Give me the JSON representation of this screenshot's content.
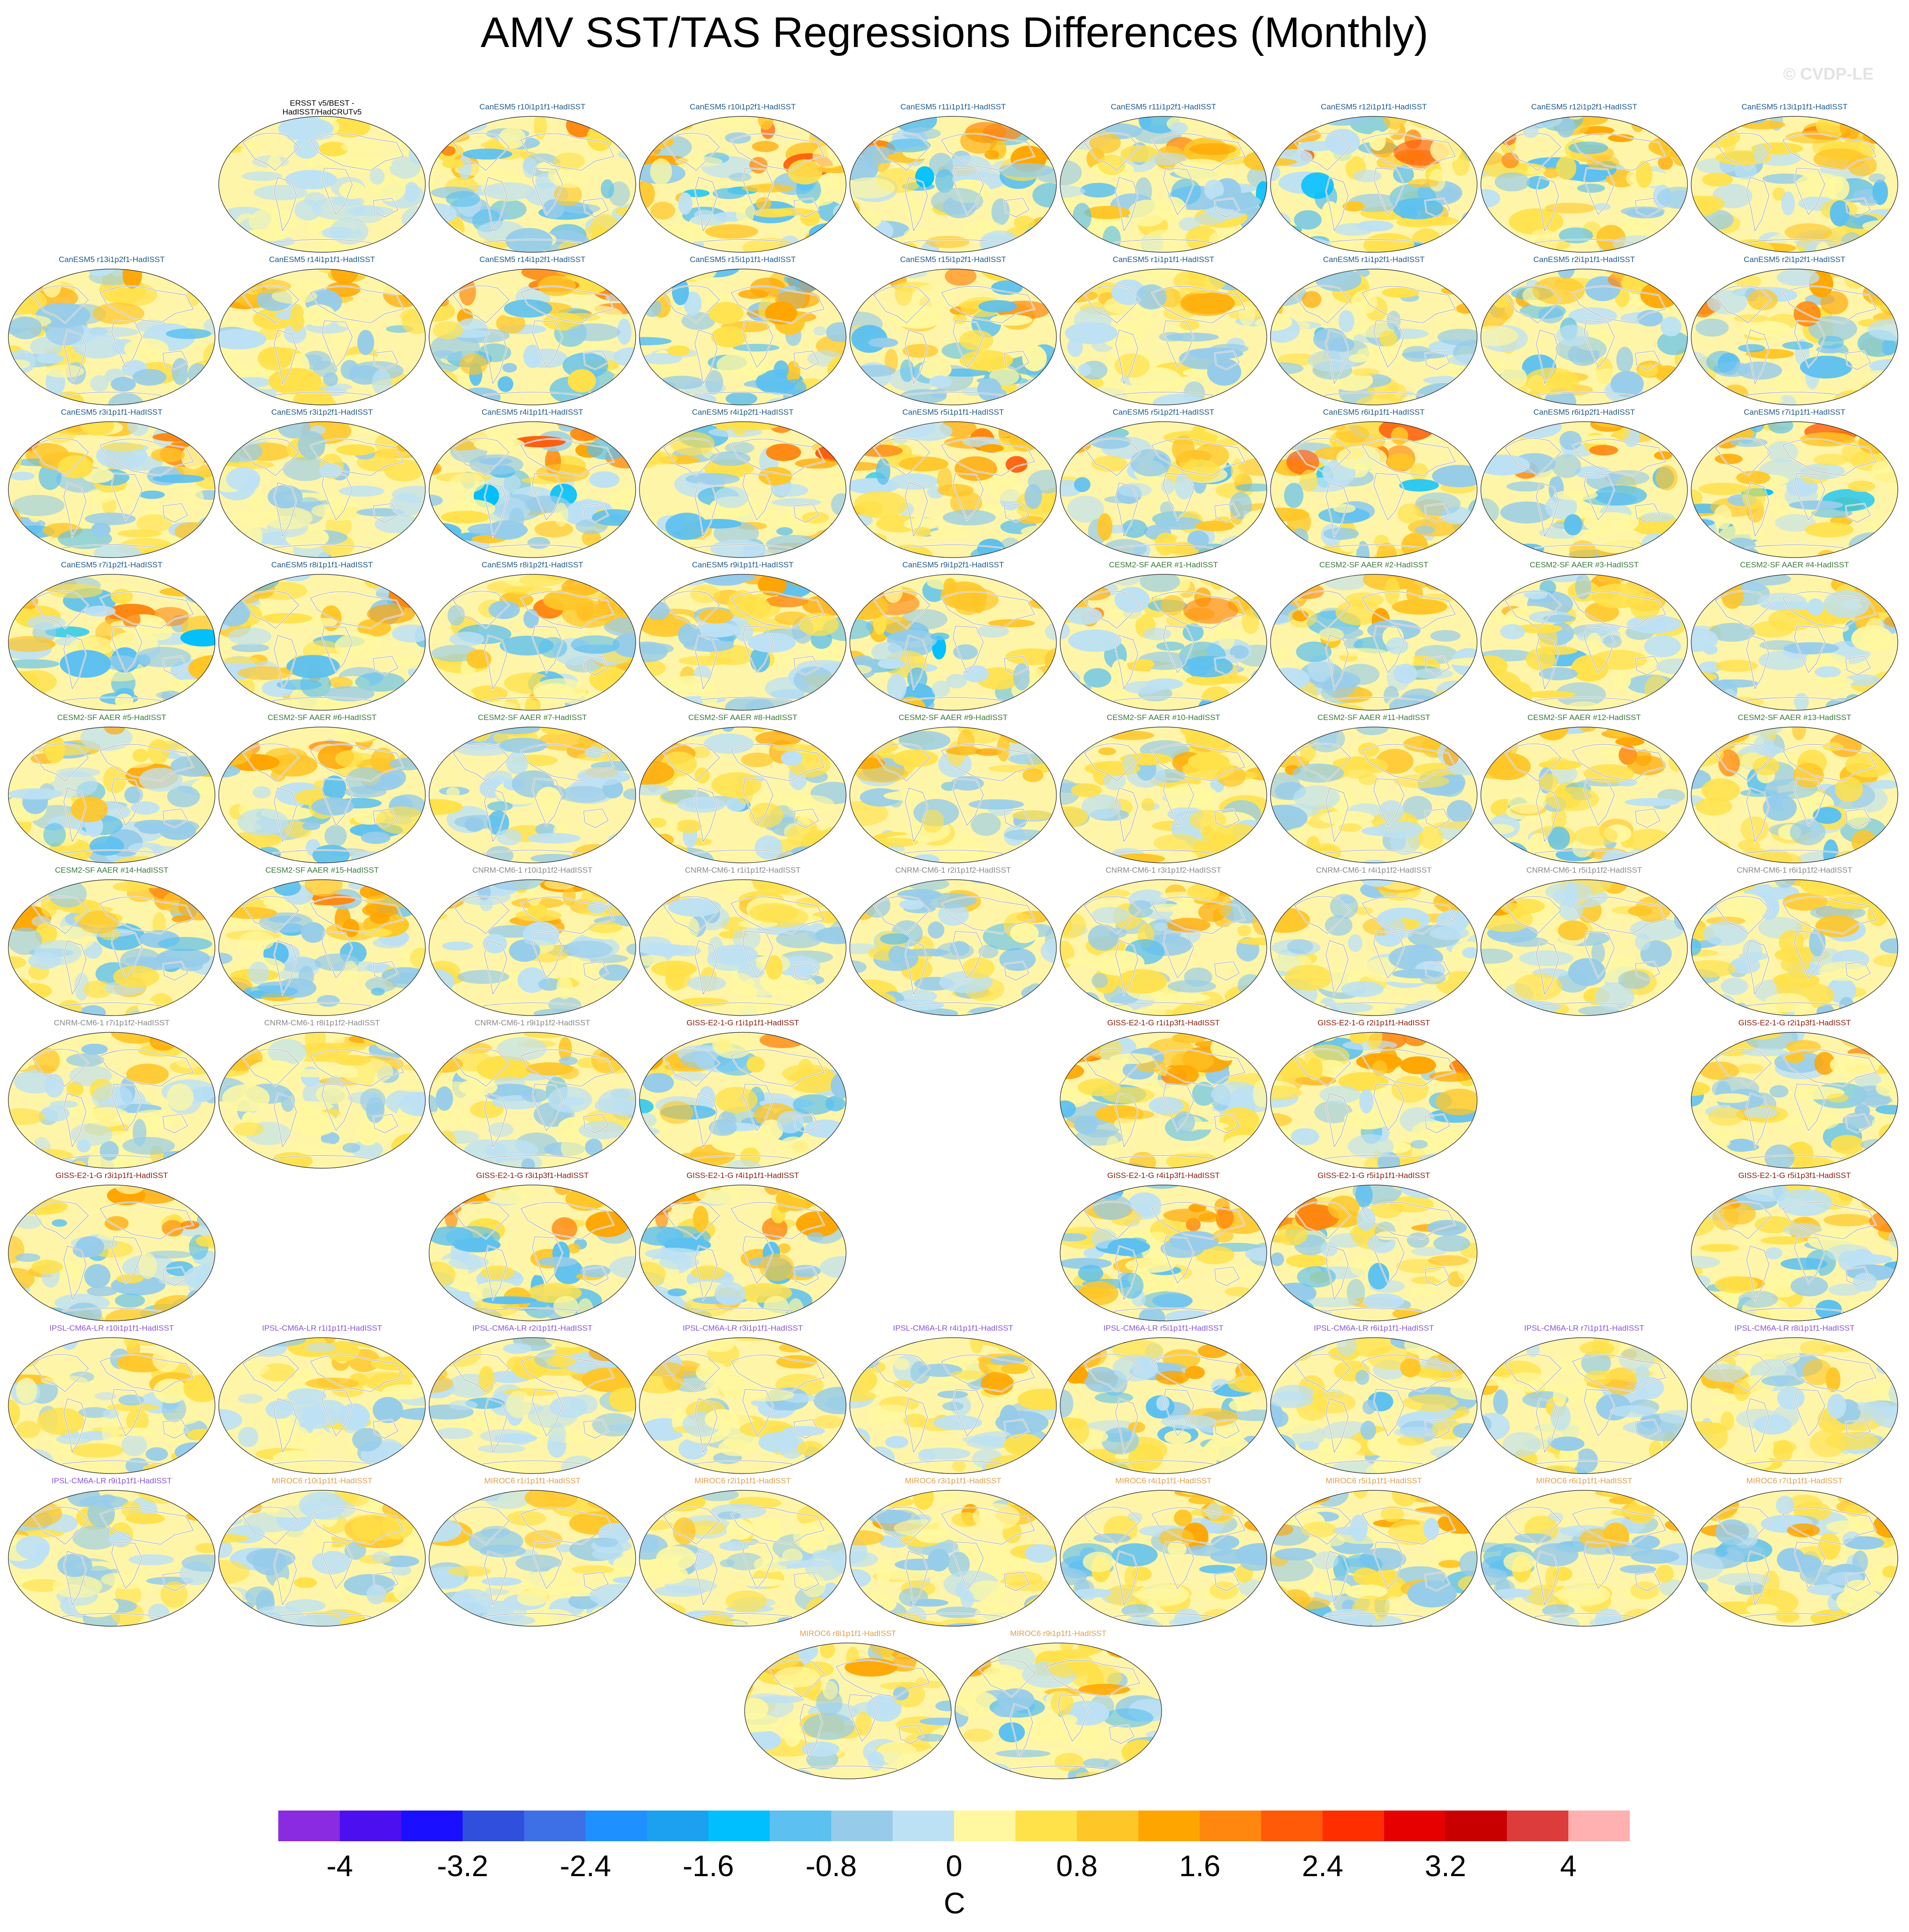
{
  "title": "AMV SST/TAS Regressions Differences (Monthly)",
  "watermark": "© CVDP-LE",
  "chart_data": {
    "type": "heatmap",
    "title": "AMV SST/TAS Regressions Differences (Monthly)",
    "projection": "global map panels",
    "units": "C",
    "colorbar": {
      "min": -4.4,
      "max": 4.4,
      "step": 0.4,
      "tick_labels": [
        "-4",
        "-3.2",
        "-2.4",
        "-1.6",
        "-0.8",
        "0",
        "0.8",
        "1.6",
        "2.4",
        "3.2",
        "4"
      ],
      "tick_values": [
        -4,
        -3.2,
        -2.4,
        -1.6,
        -0.8,
        0,
        0.8,
        1.6,
        2.4,
        3.2,
        4
      ],
      "colors": [
        "#8a2be2",
        "#4b0ff0",
        "#1a0fff",
        "#2f4fdc",
        "#3d6fe6",
        "#1e90ff",
        "#1ca0f0",
        "#00bfff",
        "#5cc0f0",
        "#96ccea",
        "#bde1f4",
        "#fff8a0",
        "#ffe14a",
        "#ffc628",
        "#ffa500",
        "#ff8710",
        "#ff5a08",
        "#ff2e00",
        "#e60000",
        "#c80000",
        "#dc3c3c",
        "#ffb0b0"
      ]
    },
    "group_colors": {
      "obs": "#000000",
      "CanESM5": "#1f5a8a",
      "CESM2-SF AAER": "#3a7a3a",
      "CNRM-CM6-1": "#8a8a8a",
      "GISS-E2-1-G": "#8b1c0c",
      "IPSL-CM6A-LR": "#8a55d8",
      "MIROC6": "#e0a050"
    },
    "panels": [
      {
        "title": "ERSST v5/BEST -\nHadISST/HadCRUTv5",
        "group": "obs",
        "intensity": 0.25,
        "seed": 1
      },
      {
        "title": "CanESM5 r10i1p1f1-HadISST",
        "group": "CanESM5",
        "intensity": 0.8,
        "seed": 2
      },
      {
        "title": "CanESM5 r10i1p2f1-HadISST",
        "group": "CanESM5",
        "intensity": 0.95,
        "seed": 3
      },
      {
        "title": "CanESM5 r11i1p1f1-HadISST",
        "group": "CanESM5",
        "intensity": 0.85,
        "seed": 4
      },
      {
        "title": "CanESM5 r11i1p2f1-HadISST",
        "group": "CanESM5",
        "intensity": 0.8,
        "seed": 5
      },
      {
        "title": "CanESM5 r12i1p1f1-HadISST",
        "group": "CanESM5",
        "intensity": 0.85,
        "seed": 6
      },
      {
        "title": "CanESM5 r12i1p2f1-HadISST",
        "group": "CanESM5",
        "intensity": 0.85,
        "seed": 7
      },
      {
        "title": "CanESM5 r13i1p1f1-HadISST",
        "group": "CanESM5",
        "intensity": 0.75,
        "seed": 8
      },
      {
        "title": "CanESM5 r13i1p2f1-HadISST",
        "group": "CanESM5",
        "intensity": 0.6,
        "seed": 9
      },
      {
        "title": "CanESM5 r14i1p1f1-HadISST",
        "group": "CanESM5",
        "intensity": 0.6,
        "seed": 10
      },
      {
        "title": "CanESM5 r14i1p2f1-HadISST",
        "group": "CanESM5",
        "intensity": 0.85,
        "seed": 11
      },
      {
        "title": "CanESM5 r15i1p1f1-HadISST",
        "group": "CanESM5",
        "intensity": 0.8,
        "seed": 12
      },
      {
        "title": "CanESM5 r15i1p2f1-HadISST",
        "group": "CanESM5",
        "intensity": 0.85,
        "seed": 13
      },
      {
        "title": "CanESM5 r1i1p1f1-HadISST",
        "group": "CanESM5",
        "intensity": 0.55,
        "seed": 14
      },
      {
        "title": "CanESM5 r1i1p2f1-HadISST",
        "group": "CanESM5",
        "intensity": 0.6,
        "seed": 15
      },
      {
        "title": "CanESM5 r2i1p1f1-HadISST",
        "group": "CanESM5",
        "intensity": 0.8,
        "seed": 16
      },
      {
        "title": "CanESM5 r2i1p2f1-HadISST",
        "group": "CanESM5",
        "intensity": 0.8,
        "seed": 17
      },
      {
        "title": "CanESM5 r3i1p1f1-HadISST",
        "group": "CanESM5",
        "intensity": 0.75,
        "seed": 18
      },
      {
        "title": "CanESM5 r3i1p2f1-HadISST",
        "group": "CanESM5",
        "intensity": 0.5,
        "seed": 19
      },
      {
        "title": "CanESM5 r4i1p1f1-HadISST",
        "group": "CanESM5",
        "intensity": 0.85,
        "seed": 20
      },
      {
        "title": "CanESM5 r4i1p2f1-HadISST",
        "group": "CanESM5",
        "intensity": 0.85,
        "seed": 21
      },
      {
        "title": "CanESM5 r5i1p1f1-HadISST",
        "group": "CanESM5",
        "intensity": 0.85,
        "seed": 22
      },
      {
        "title": "CanESM5 r5i1p2f1-HadISST",
        "group": "CanESM5",
        "intensity": 0.8,
        "seed": 23
      },
      {
        "title": "CanESM5 r6i1p1f1-HadISST",
        "group": "CanESM5",
        "intensity": 0.95,
        "seed": 24
      },
      {
        "title": "CanESM5 r6i1p2f1-HadISST",
        "group": "CanESM5",
        "intensity": 0.75,
        "seed": 25
      },
      {
        "title": "CanESM5 r7i1p1f1-HadISST",
        "group": "CanESM5",
        "intensity": 0.9,
        "seed": 26
      },
      {
        "title": "CanESM5 r7i1p2f1-HadISST",
        "group": "CanESM5",
        "intensity": 0.85,
        "seed": 27
      },
      {
        "title": "CanESM5 r8i1p1f1-HadISST",
        "group": "CanESM5",
        "intensity": 0.8,
        "seed": 28
      },
      {
        "title": "CanESM5 r8i1p2f1-HadISST",
        "group": "CanESM5",
        "intensity": 0.7,
        "seed": 29
      },
      {
        "title": "CanESM5 r9i1p1f1-HadISST",
        "group": "CanESM5",
        "intensity": 0.75,
        "seed": 30
      },
      {
        "title": "CanESM5 r9i1p2f1-HadISST",
        "group": "CanESM5",
        "intensity": 0.85,
        "seed": 31
      },
      {
        "title": "CESM2-SF AAER #1-HadISST",
        "group": "CESM2-SF AAER",
        "intensity": 0.7,
        "seed": 32
      },
      {
        "title": "CESM2-SF AAER #2-HadISST",
        "group": "CESM2-SF AAER",
        "intensity": 0.7,
        "seed": 33
      },
      {
        "title": "CESM2-SF AAER #3-HadISST",
        "group": "CESM2-SF AAER",
        "intensity": 0.65,
        "seed": 34
      },
      {
        "title": "CESM2-SF AAER #4-HadISST",
        "group": "CESM2-SF AAER",
        "intensity": 0.65,
        "seed": 35
      },
      {
        "title": "CESM2-SF AAER #5-HadISST",
        "group": "CESM2-SF AAER",
        "intensity": 0.7,
        "seed": 36
      },
      {
        "title": "CESM2-SF AAER #6-HadISST",
        "group": "CESM2-SF AAER",
        "intensity": 0.75,
        "seed": 37
      },
      {
        "title": "CESM2-SF AAER #7-HadISST",
        "group": "CESM2-SF AAER",
        "intensity": 0.65,
        "seed": 38
      },
      {
        "title": "CESM2-SF AAER #8-HadISST",
        "group": "CESM2-SF AAER",
        "intensity": 0.65,
        "seed": 39
      },
      {
        "title": "CESM2-SF AAER #9-HadISST",
        "group": "CESM2-SF AAER",
        "intensity": 0.6,
        "seed": 40
      },
      {
        "title": "CESM2-SF AAER #10-HadISST",
        "group": "CESM2-SF AAER",
        "intensity": 0.7,
        "seed": 41
      },
      {
        "title": "CESM2-SF AAER #11-HadISST",
        "group": "CESM2-SF AAER",
        "intensity": 0.6,
        "seed": 42
      },
      {
        "title": "CESM2-SF AAER #12-HadISST",
        "group": "CESM2-SF AAER",
        "intensity": 0.7,
        "seed": 43
      },
      {
        "title": "CESM2-SF AAER #13-HadISST",
        "group": "CESM2-SF AAER",
        "intensity": 0.7,
        "seed": 44
      },
      {
        "title": "CESM2-SF AAER #14-HadISST",
        "group": "CESM2-SF AAER",
        "intensity": 0.7,
        "seed": 45
      },
      {
        "title": "CESM2-SF AAER #15-HadISST",
        "group": "CESM2-SF AAER",
        "intensity": 0.7,
        "seed": 46
      },
      {
        "title": "CNRM-CM6-1 r10i1p1f2-HadISST",
        "group": "CNRM-CM6-1",
        "intensity": 0.55,
        "seed": 47
      },
      {
        "title": "CNRM-CM6-1 r1i1p1f2-HadISST",
        "group": "CNRM-CM6-1",
        "intensity": 0.5,
        "seed": 48
      },
      {
        "title": "CNRM-CM6-1 r2i1p1f2-HadISST",
        "group": "CNRM-CM6-1",
        "intensity": 0.6,
        "seed": 49
      },
      {
        "title": "CNRM-CM6-1 r3i1p1f2-HadISST",
        "group": "CNRM-CM6-1",
        "intensity": 0.65,
        "seed": 50
      },
      {
        "title": "CNRM-CM6-1 r4i1p1f2-HadISST",
        "group": "CNRM-CM6-1",
        "intensity": 0.5,
        "seed": 51
      },
      {
        "title": "CNRM-CM6-1 r5i1p1f2-HadISST",
        "group": "CNRM-CM6-1",
        "intensity": 0.65,
        "seed": 52
      },
      {
        "title": "CNRM-CM6-1 r6i1p1f2-HadISST",
        "group": "CNRM-CM6-1",
        "intensity": 0.6,
        "seed": 53
      },
      {
        "title": "CNRM-CM6-1 r7i1p1f2-HadISST",
        "group": "CNRM-CM6-1",
        "intensity": 0.55,
        "seed": 54
      },
      {
        "title": "CNRM-CM6-1 r8i1p1f2-HadISST",
        "group": "CNRM-CM6-1",
        "intensity": 0.5,
        "seed": 55
      },
      {
        "title": "CNRM-CM6-1 r9i1p1f2-HadISST",
        "group": "CNRM-CM6-1",
        "intensity": 0.55,
        "seed": 56
      },
      {
        "title": "GISS-E2-1-G r1i1p1f1-HadISST",
        "group": "GISS-E2-1-G",
        "intensity": 0.85,
        "seed": 57
      },
      {
        "title": "GISS-E2-1-G r1i1p3f1-HadISST",
        "group": "GISS-E2-1-G",
        "intensity": 0.75,
        "seed": 58
      },
      {
        "title": "GISS-E2-1-G r2i1p1f1-HadISST",
        "group": "GISS-E2-1-G",
        "intensity": 0.75,
        "seed": 59
      },
      {
        "title": "GISS-E2-1-G r2i1p3f1-HadISST",
        "group": "GISS-E2-1-G",
        "intensity": 0.7,
        "seed": 60
      },
      {
        "title": "GISS-E2-1-G r3i1p1f1-HadISST",
        "group": "GISS-E2-1-G",
        "intensity": 0.8,
        "seed": 61
      },
      {
        "title": "GISS-E2-1-G r3i1p3f1-HadISST",
        "group": "GISS-E2-1-G",
        "intensity": 0.9,
        "seed": 62
      },
      {
        "title": "GISS-E2-1-G r4i1p1f1-HadISST",
        "group": "GISS-E2-1-G",
        "intensity": 0.85,
        "seed": 63
      },
      {
        "title": "GISS-E2-1-G r4i1p3f1-HadISST",
        "group": "GISS-E2-1-G",
        "intensity": 0.75,
        "seed": 64
      },
      {
        "title": "GISS-E2-1-G r5i1p1f1-HadISST",
        "group": "GISS-E2-1-G",
        "intensity": 0.85,
        "seed": 65
      },
      {
        "title": "GISS-E2-1-G r5i1p3f1-HadISST",
        "group": "GISS-E2-1-G",
        "intensity": 0.75,
        "seed": 66
      },
      {
        "title": "IPSL-CM6A-LR r10i1p1f1-HadISST",
        "group": "IPSL-CM6A-LR",
        "intensity": 0.5,
        "seed": 67
      },
      {
        "title": "IPSL-CM6A-LR r1i1p1f1-HadISST",
        "group": "IPSL-CM6A-LR",
        "intensity": 0.5,
        "seed": 68
      },
      {
        "title": "IPSL-CM6A-LR r2i1p1f1-HadISST",
        "group": "IPSL-CM6A-LR",
        "intensity": 0.55,
        "seed": 69
      },
      {
        "title": "IPSL-CM6A-LR r3i1p1f1-HadISST",
        "group": "IPSL-CM6A-LR",
        "intensity": 0.5,
        "seed": 70
      },
      {
        "title": "IPSL-CM6A-LR r4i1p1f1-HadISST",
        "group": "IPSL-CM6A-LR",
        "intensity": 0.55,
        "seed": 71
      },
      {
        "title": "IPSL-CM6A-LR r5i1p1f1-HadISST",
        "group": "IPSL-CM6A-LR",
        "intensity": 0.7,
        "seed": 72
      },
      {
        "title": "IPSL-CM6A-LR r6i1p1f1-HadISST",
        "group": "IPSL-CM6A-LR",
        "intensity": 0.55,
        "seed": 73
      },
      {
        "title": "IPSL-CM6A-LR r7i1p1f1-HadISST",
        "group": "IPSL-CM6A-LR",
        "intensity": 0.5,
        "seed": 74
      },
      {
        "title": "IPSL-CM6A-LR r8i1p1f1-HadISST",
        "group": "IPSL-CM6A-LR",
        "intensity": 0.5,
        "seed": 75
      },
      {
        "title": "IPSL-CM6A-LR r9i1p1f1-HadISST",
        "group": "IPSL-CM6A-LR",
        "intensity": 0.55,
        "seed": 76
      },
      {
        "title": "MIROC6 r10i1p1f1-HadISST",
        "group": "MIROC6",
        "intensity": 0.5,
        "seed": 77
      },
      {
        "title": "MIROC6 r1i1p1f1-HadISST",
        "group": "MIROC6",
        "intensity": 0.5,
        "seed": 78
      },
      {
        "title": "MIROC6 r2i1p1f1-HadISST",
        "group": "MIROC6",
        "intensity": 0.5,
        "seed": 79
      },
      {
        "title": "MIROC6 r3i1p1f1-HadISST",
        "group": "MIROC6",
        "intensity": 0.6,
        "seed": 80
      },
      {
        "title": "MIROC6 r4i1p1f1-HadISST",
        "group": "MIROC6",
        "intensity": 0.6,
        "seed": 81
      },
      {
        "title": "MIROC6 r5i1p1f1-HadISST",
        "group": "MIROC6",
        "intensity": 0.7,
        "seed": 82
      },
      {
        "title": "MIROC6 r6i1p1f1-HadISST",
        "group": "MIROC6",
        "intensity": 0.55,
        "seed": 83
      },
      {
        "title": "MIROC6 r7i1p1f1-HadISST",
        "group": "MIROC6",
        "intensity": 0.6,
        "seed": 84
      },
      {
        "title": "MIROC6 r8i1p1f1-HadISST",
        "group": "MIROC6",
        "intensity": 0.55,
        "seed": 85
      },
      {
        "title": "MIROC6 r9i1p1f1-HadISST",
        "group": "MIROC6",
        "intensity": 0.65,
        "seed": 86
      }
    ]
  }
}
